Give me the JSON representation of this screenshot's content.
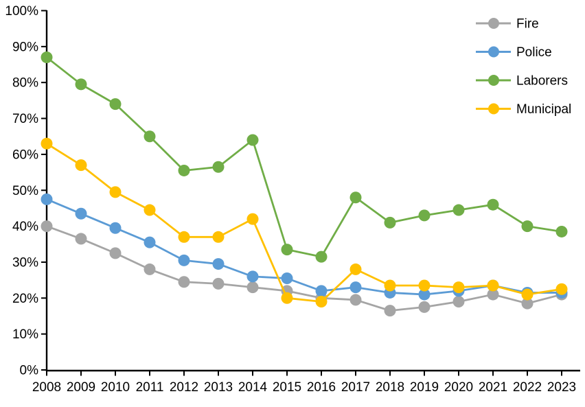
{
  "chart_data": {
    "type": "line",
    "title": "",
    "xlabel": "",
    "ylabel": "",
    "x_categories": [
      "2008",
      "2009",
      "2010",
      "2011",
      "2012",
      "2013",
      "2014",
      "2015",
      "2016",
      "2017",
      "2018",
      "2019",
      "2020",
      "2021",
      "2022",
      "2023"
    ],
    "ylim": [
      0,
      100
    ],
    "ytick_step": 10,
    "ytick_labels": [
      "0%",
      "10%",
      "20%",
      "30%",
      "40%",
      "50%",
      "60%",
      "70%",
      "80%",
      "90%",
      "100%"
    ],
    "grid": false,
    "axis_color": "#000000",
    "marker": "circle",
    "legend_position": "top-right",
    "series": [
      {
        "name": "Fire",
        "color": "#A5A5A5",
        "values": [
          40,
          36.5,
          32.5,
          28,
          24.5,
          24,
          23,
          22,
          20,
          19.5,
          16.5,
          17.5,
          19,
          21,
          18.5,
          21
        ]
      },
      {
        "name": "Police",
        "color": "#5B9BD5",
        "values": [
          47.5,
          43.5,
          39.5,
          35.5,
          30.5,
          29.5,
          26,
          25.5,
          22,
          23,
          21.5,
          21,
          22,
          23.5,
          21.5,
          21.5
        ]
      },
      {
        "name": "Laborers",
        "color": "#70AD47",
        "values": [
          87,
          79.5,
          74,
          65,
          55.5,
          56.5,
          64,
          33.5,
          31.5,
          48,
          41,
          43,
          44.5,
          46,
          40,
          38.5
        ]
      },
      {
        "name": "Municipal",
        "color": "#FFC000",
        "values": [
          63,
          57,
          49.5,
          44.5,
          37,
          37,
          42,
          20,
          19,
          28,
          23.5,
          23.5,
          23,
          23.5,
          21,
          22.5
        ]
      }
    ]
  }
}
